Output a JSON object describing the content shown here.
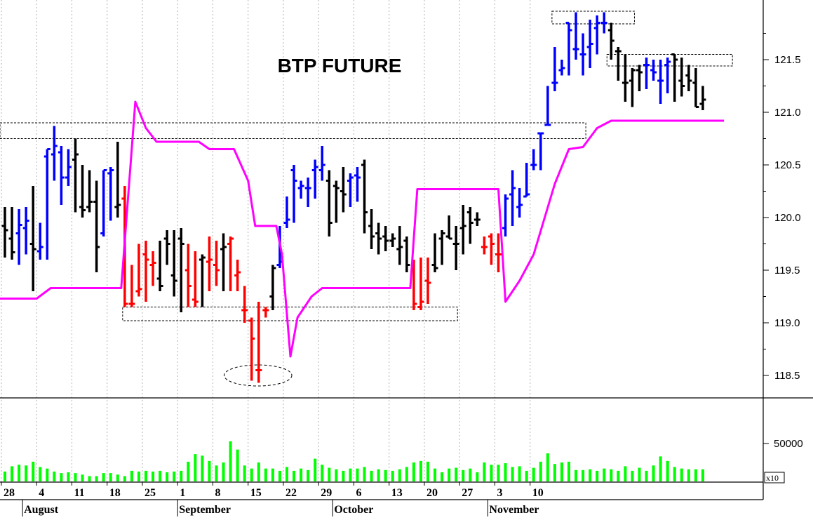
{
  "chart_data": {
    "type": "bar",
    "subtype": "ohlc",
    "title": "BTP FUTURE",
    "price_axis": {
      "ylim": [
        118.3,
        122.0
      ],
      "ticks": [
        118.5,
        119.0,
        119.5,
        120.0,
        120.5,
        121.0,
        121.5
      ],
      "tick_labels": [
        "118.5",
        "119.0",
        "119.5",
        "120.0",
        "120.5",
        "121.0",
        "121.5"
      ],
      "grid": "vertical dotted"
    },
    "volume_axis": {
      "ylim": [
        0,
        68000
      ],
      "ticks": [
        50000
      ],
      "tick_labels": [
        "50000"
      ],
      "scale_note": "x10"
    },
    "x_axis": {
      "day_ticks": [
        {
          "label": "28",
          "i": -0.5
        },
        {
          "label": "4",
          "i": 4.5
        },
        {
          "label": "11",
          "i": 9.5
        },
        {
          "label": "18",
          "i": 14.5
        },
        {
          "label": "25",
          "i": 19.5
        },
        {
          "label": "1",
          "i": 24.5
        },
        {
          "label": "8",
          "i": 29.5
        },
        {
          "label": "15",
          "i": 34.5
        },
        {
          "label": "22",
          "i": 39.5
        },
        {
          "label": "29",
          "i": 44.5
        },
        {
          "label": "6",
          "i": 49.5
        },
        {
          "label": "13",
          "i": 54.5
        },
        {
          "label": "20",
          "i": 59.5
        },
        {
          "label": "27",
          "i": 64.5
        },
        {
          "label": "3",
          "i": 69.5
        },
        {
          "label": "10",
          "i": 74.5
        }
      ],
      "months": [
        {
          "label": "August",
          "i": 2.5
        },
        {
          "label": "September",
          "i": 24.5
        },
        {
          "label": "October",
          "i": 46.5
        },
        {
          "label": "November",
          "i": 68.5
        }
      ]
    },
    "colors": {
      "up": "#0000ff",
      "down": "#ff0000",
      "neutral": "#000000",
      "indicator": "#ff00ff",
      "volume": "#00ff00"
    },
    "bars": [
      {
        "o": 119.92,
        "h": 120.1,
        "l": 119.62,
        "c": 119.88,
        "col": "black"
      },
      {
        "o": 119.8,
        "h": 120.1,
        "l": 119.6,
        "c": 119.67,
        "col": "black"
      },
      {
        "o": 119.85,
        "h": 120.08,
        "l": 119.55,
        "c": 119.93,
        "col": "blue"
      },
      {
        "o": 119.9,
        "h": 120.1,
        "l": 119.65,
        "c": 119.97,
        "col": "blue"
      },
      {
        "o": 119.75,
        "h": 120.3,
        "l": 119.3,
        "c": 119.7,
        "col": "black"
      },
      {
        "o": 119.68,
        "h": 119.95,
        "l": 119.6,
        "c": 119.72,
        "col": "blue"
      },
      {
        "o": 120.58,
        "h": 120.65,
        "l": 119.6,
        "c": 120.65,
        "col": "blue"
      },
      {
        "o": 120.6,
        "h": 120.87,
        "l": 120.35,
        "c": 120.68,
        "col": "blue"
      },
      {
        "o": 120.62,
        "h": 120.68,
        "l": 120.12,
        "c": 120.38,
        "col": "blue"
      },
      {
        "o": 120.38,
        "h": 120.65,
        "l": 120.3,
        "c": 120.48,
        "col": "blue"
      },
      {
        "o": 120.55,
        "h": 120.75,
        "l": 120.05,
        "c": 120.6,
        "col": "black"
      },
      {
        "o": 120.1,
        "h": 120.5,
        "l": 120.0,
        "c": 120.07,
        "col": "black"
      },
      {
        "o": 120.1,
        "h": 120.45,
        "l": 120.05,
        "c": 120.15,
        "col": "black"
      },
      {
        "o": 120.15,
        "h": 120.35,
        "l": 119.48,
        "c": 119.72,
        "col": "black"
      },
      {
        "o": 119.85,
        "h": 120.45,
        "l": 119.82,
        "c": 120.45,
        "col": "blue"
      },
      {
        "o": 120.42,
        "h": 120.48,
        "l": 119.97,
        "c": 120.45,
        "col": "blue"
      },
      {
        "o": 120.1,
        "h": 120.72,
        "l": 120.0,
        "c": 120.12,
        "col": "black"
      },
      {
        "o": 120.18,
        "h": 120.3,
        "l": 119.15,
        "c": 119.18,
        "col": "red"
      },
      {
        "o": 119.18,
        "h": 119.55,
        "l": 119.15,
        "c": 119.18,
        "col": "red"
      },
      {
        "o": 119.3,
        "h": 119.75,
        "l": 119.25,
        "c": 119.32,
        "col": "red"
      },
      {
        "o": 119.65,
        "h": 119.78,
        "l": 119.2,
        "c": 119.6,
        "col": "red"
      },
      {
        "o": 119.55,
        "h": 119.68,
        "l": 119.35,
        "c": 119.57,
        "col": "red"
      },
      {
        "o": 119.42,
        "h": 119.78,
        "l": 119.3,
        "c": 119.35,
        "col": "black"
      },
      {
        "o": 119.8,
        "h": 119.88,
        "l": 119.55,
        "c": 119.75,
        "col": "black"
      },
      {
        "o": 119.45,
        "h": 119.88,
        "l": 119.25,
        "c": 119.4,
        "col": "black"
      },
      {
        "o": 119.8,
        "h": 119.9,
        "l": 119.1,
        "c": 119.75,
        "col": "black"
      },
      {
        "o": 119.5,
        "h": 119.75,
        "l": 119.15,
        "c": 119.35,
        "col": "red"
      },
      {
        "o": 119.22,
        "h": 119.68,
        "l": 119.15,
        "c": 119.2,
        "col": "red"
      },
      {
        "o": 119.6,
        "h": 119.65,
        "l": 119.15,
        "c": 119.62,
        "col": "black"
      },
      {
        "o": 119.58,
        "h": 119.82,
        "l": 119.3,
        "c": 119.6,
        "col": "red"
      },
      {
        "o": 119.55,
        "h": 119.78,
        "l": 119.35,
        "c": 119.5,
        "col": "red"
      },
      {
        "o": 119.7,
        "h": 119.85,
        "l": 119.3,
        "c": 119.72,
        "col": "black"
      },
      {
        "o": 119.75,
        "h": 119.82,
        "l": 119.3,
        "c": 119.8,
        "col": "red"
      },
      {
        "o": 119.45,
        "h": 119.6,
        "l": 119.3,
        "c": 119.48,
        "col": "red"
      },
      {
        "o": 119.12,
        "h": 119.35,
        "l": 119.0,
        "c": 119.12,
        "col": "red"
      },
      {
        "o": 119.02,
        "h": 119.05,
        "l": 118.45,
        "c": 118.85,
        "col": "red"
      },
      {
        "o": 118.55,
        "h": 119.2,
        "l": 118.43,
        "c": 118.55,
        "col": "red"
      },
      {
        "o": 119.12,
        "h": 119.15,
        "l": 119.05,
        "c": 119.12,
        "col": "red"
      },
      {
        "o": 119.25,
        "h": 119.55,
        "l": 119.12,
        "c": 119.52,
        "col": "black"
      },
      {
        "o": 119.55,
        "h": 119.92,
        "l": 119.52,
        "c": 119.58,
        "col": "blue"
      },
      {
        "o": 119.95,
        "h": 120.2,
        "l": 119.9,
        "c": 119.98,
        "col": "blue"
      },
      {
        "o": 120.45,
        "h": 120.5,
        "l": 119.95,
        "c": 120.35,
        "col": "blue"
      },
      {
        "o": 120.28,
        "h": 120.35,
        "l": 120.18,
        "c": 120.3,
        "col": "blue"
      },
      {
        "o": 120.28,
        "h": 120.38,
        "l": 120.1,
        "c": 120.28,
        "col": "blue"
      },
      {
        "o": 120.45,
        "h": 120.55,
        "l": 120.18,
        "c": 120.48,
        "col": "blue"
      },
      {
        "o": 120.45,
        "h": 120.68,
        "l": 120.35,
        "c": 120.5,
        "col": "blue"
      },
      {
        "o": 120.35,
        "h": 120.45,
        "l": 119.82,
        "c": 119.95,
        "col": "black"
      },
      {
        "o": 120.3,
        "h": 120.35,
        "l": 119.95,
        "c": 120.28,
        "col": "black"
      },
      {
        "o": 120.25,
        "h": 120.48,
        "l": 120.05,
        "c": 120.22,
        "col": "black"
      },
      {
        "o": 120.35,
        "h": 120.42,
        "l": 120.1,
        "c": 120.38,
        "col": "blue"
      },
      {
        "o": 120.4,
        "h": 120.48,
        "l": 120.15,
        "c": 120.38,
        "col": "blue"
      },
      {
        "o": 120.5,
        "h": 120.55,
        "l": 119.85,
        "c": 120.05,
        "col": "black"
      },
      {
        "o": 119.92,
        "h": 120.08,
        "l": 119.7,
        "c": 119.82,
        "col": "black"
      },
      {
        "o": 119.85,
        "h": 119.95,
        "l": 119.65,
        "c": 119.8,
        "col": "black"
      },
      {
        "o": 119.82,
        "h": 119.92,
        "l": 119.68,
        "c": 119.78,
        "col": "black"
      },
      {
        "o": 119.78,
        "h": 119.85,
        "l": 119.72,
        "c": 119.8,
        "col": "black"
      },
      {
        "o": 119.7,
        "h": 119.92,
        "l": 119.55,
        "c": 119.72,
        "col": "black"
      },
      {
        "o": 119.78,
        "h": 119.82,
        "l": 119.48,
        "c": 119.55,
        "col": "black"
      },
      {
        "o": 119.5,
        "h": 119.6,
        "l": 119.12,
        "c": 119.18,
        "col": "red"
      },
      {
        "o": 119.15,
        "h": 119.62,
        "l": 119.12,
        "c": 119.2,
        "col": "red"
      },
      {
        "o": 119.4,
        "h": 119.62,
        "l": 119.18,
        "c": 119.38,
        "col": "red"
      },
      {
        "o": 119.55,
        "h": 119.85,
        "l": 119.48,
        "c": 119.52,
        "col": "black"
      },
      {
        "o": 119.8,
        "h": 119.88,
        "l": 119.55,
        "c": 119.85,
        "col": "black"
      },
      {
        "o": 119.82,
        "h": 120.02,
        "l": 119.8,
        "c": 119.8,
        "col": "black"
      },
      {
        "o": 119.75,
        "h": 119.92,
        "l": 119.5,
        "c": 119.75,
        "col": "black"
      },
      {
        "o": 119.9,
        "h": 120.12,
        "l": 119.65,
        "c": 119.92,
        "col": "black"
      },
      {
        "o": 120.05,
        "h": 120.1,
        "l": 119.75,
        "c": 119.95,
        "col": "black"
      },
      {
        "o": 119.98,
        "h": 120.05,
        "l": 119.92,
        "c": 119.98,
        "col": "black"
      },
      {
        "o": 119.72,
        "h": 119.82,
        "l": 119.65,
        "c": 119.72,
        "col": "red"
      },
      {
        "o": 119.82,
        "h": 119.85,
        "l": 119.55,
        "c": 119.75,
        "col": "red"
      },
      {
        "o": 119.65,
        "h": 119.85,
        "l": 119.48,
        "c": 119.65,
        "col": "red"
      },
      {
        "o": 119.9,
        "h": 120.22,
        "l": 119.82,
        "c": 120.18,
        "col": "blue"
      },
      {
        "o": 120.22,
        "h": 120.45,
        "l": 119.92,
        "c": 120.28,
        "col": "blue"
      },
      {
        "o": 120.1,
        "h": 120.28,
        "l": 120.0,
        "c": 120.12,
        "col": "blue"
      },
      {
        "o": 120.2,
        "h": 120.52,
        "l": 120.2,
        "c": 120.22,
        "col": "blue"
      },
      {
        "o": 120.5,
        "h": 120.65,
        "l": 120.45,
        "c": 120.5,
        "col": "blue"
      },
      {
        "o": 120.8,
        "h": 120.8,
        "l": 120.45,
        "c": 120.8,
        "col": "blue"
      },
      {
        "o": 120.88,
        "h": 121.25,
        "l": 120.88,
        "c": 120.88,
        "col": "blue"
      },
      {
        "o": 121.28,
        "h": 121.62,
        "l": 121.2,
        "c": 121.28,
        "col": "blue"
      },
      {
        "o": 121.4,
        "h": 121.5,
        "l": 121.35,
        "c": 121.42,
        "col": "blue"
      },
      {
        "o": 121.85,
        "h": 121.85,
        "l": 121.35,
        "c": 121.78,
        "col": "blue"
      },
      {
        "o": 121.6,
        "h": 121.95,
        "l": 121.5,
        "c": 121.6,
        "col": "blue"
      },
      {
        "o": 121.55,
        "h": 121.75,
        "l": 121.35,
        "c": 121.55,
        "col": "blue"
      },
      {
        "o": 121.62,
        "h": 121.88,
        "l": 121.42,
        "c": 121.65,
        "col": "blue"
      },
      {
        "o": 121.8,
        "h": 121.92,
        "l": 121.55,
        "c": 121.85,
        "col": "blue"
      },
      {
        "o": 121.85,
        "h": 121.95,
        "l": 121.75,
        "c": 121.85,
        "col": "blue"
      },
      {
        "o": 121.78,
        "h": 121.85,
        "l": 121.5,
        "c": 121.68,
        "col": "black"
      },
      {
        "o": 121.58,
        "h": 121.62,
        "l": 121.3,
        "c": 121.58,
        "col": "black"
      },
      {
        "o": 121.28,
        "h": 121.55,
        "l": 121.1,
        "c": 121.28,
        "col": "black"
      },
      {
        "o": 121.3,
        "h": 121.42,
        "l": 121.05,
        "c": 121.4,
        "col": "black"
      },
      {
        "o": 121.4,
        "h": 121.45,
        "l": 121.2,
        "c": 121.38,
        "col": "black"
      },
      {
        "o": 121.45,
        "h": 121.52,
        "l": 121.22,
        "c": 121.45,
        "col": "blue"
      },
      {
        "o": 121.4,
        "h": 121.5,
        "l": 121.3,
        "c": 121.38,
        "col": "blue"
      },
      {
        "o": 121.3,
        "h": 121.5,
        "l": 121.08,
        "c": 121.3,
        "col": "blue"
      },
      {
        "o": 121.45,
        "h": 121.52,
        "l": 121.18,
        "c": 121.48,
        "col": "blue"
      },
      {
        "o": 121.55,
        "h": 121.55,
        "l": 121.1,
        "c": 121.5,
        "col": "black"
      },
      {
        "o": 121.3,
        "h": 121.52,
        "l": 121.15,
        "c": 121.25,
        "col": "black"
      },
      {
        "o": 121.35,
        "h": 121.45,
        "l": 121.2,
        "c": 121.3,
        "col": "black"
      },
      {
        "o": 121.28,
        "h": 121.42,
        "l": 121.05,
        "c": 121.05,
        "col": "black"
      },
      {
        "o": 121.08,
        "h": 121.25,
        "l": 121.02,
        "c": 121.12,
        "col": "black"
      }
    ],
    "indicator": {
      "name": "",
      "points": [
        [
          -2,
          119.23
        ],
        [
          4.5,
          119.23
        ],
        [
          6.5,
          119.33
        ],
        [
          16.5,
          119.33
        ],
        [
          18.5,
          121.1
        ],
        [
          20,
          120.85
        ],
        [
          21.5,
          120.72
        ],
        [
          27.5,
          120.72
        ],
        [
          29,
          120.65
        ],
        [
          32.5,
          120.65
        ],
        [
          34.5,
          120.35
        ],
        [
          35.5,
          119.92
        ],
        [
          38.5,
          119.92
        ],
        [
          39.3,
          119.65
        ],
        [
          40.5,
          118.68
        ],
        [
          41.5,
          119.05
        ],
        [
          43.5,
          119.25
        ],
        [
          45,
          119.33
        ],
        [
          57.5,
          119.33
        ],
        [
          58.5,
          120.27
        ],
        [
          70,
          120.27
        ],
        [
          71,
          119.2
        ],
        [
          73,
          119.4
        ],
        [
          75,
          119.65
        ],
        [
          78,
          120.32
        ],
        [
          80,
          120.65
        ],
        [
          82,
          120.67
        ],
        [
          84,
          120.85
        ],
        [
          86,
          120.92
        ],
        [
          102,
          120.92
        ]
      ]
    },
    "annotations": {
      "boxes": [
        {
          "i0": -2,
          "i1": 82.4,
          "y0": 120.75,
          "y1": 120.9
        },
        {
          "i0": 16.7,
          "i1": 64.2,
          "y0": 119.02,
          "y1": 119.15
        },
        {
          "i0": 77.6,
          "i1": 89.3,
          "y0": 121.84,
          "y1": 121.96
        },
        {
          "i0": 85.4,
          "i1": 103.2,
          "y0": 121.44,
          "y1": 121.55
        }
      ],
      "ellipses": [
        {
          "ci": 35.9,
          "cy": 118.5,
          "ri": 4.8,
          "ry": 0.1
        }
      ]
    },
    "volume": [
      13000,
      20000,
      22000,
      21000,
      26000,
      19000,
      17000,
      13000,
      11000,
      12000,
      11000,
      9000,
      7000,
      7000,
      11000,
      11000,
      9000,
      7000,
      14000,
      13000,
      14000,
      13000,
      14000,
      12000,
      13000,
      14000,
      26000,
      36000,
      34000,
      27000,
      21000,
      25000,
      53000,
      42000,
      21000,
      17000,
      25000,
      17000,
      17000,
      14000,
      19000,
      14000,
      17000,
      15000,
      30000,
      22000,
      18000,
      16000,
      14000,
      17000,
      17000,
      19000,
      14000,
      16000,
      15000,
      14000,
      16000,
      19000,
      25000,
      27000,
      26000,
      17000,
      12000,
      17000,
      18000,
      15000,
      17000,
      12000,
      25000,
      22000,
      22000,
      24000,
      19000,
      20000,
      14000,
      18000,
      26000,
      37000,
      23000,
      25000,
      26000,
      15000,
      15000,
      16000,
      14000,
      17000,
      16000,
      14000,
      20000,
      14000,
      18000,
      14000,
      21000,
      33000,
      27000,
      19000,
      17000,
      16000,
      16000,
      16000
    ]
  }
}
